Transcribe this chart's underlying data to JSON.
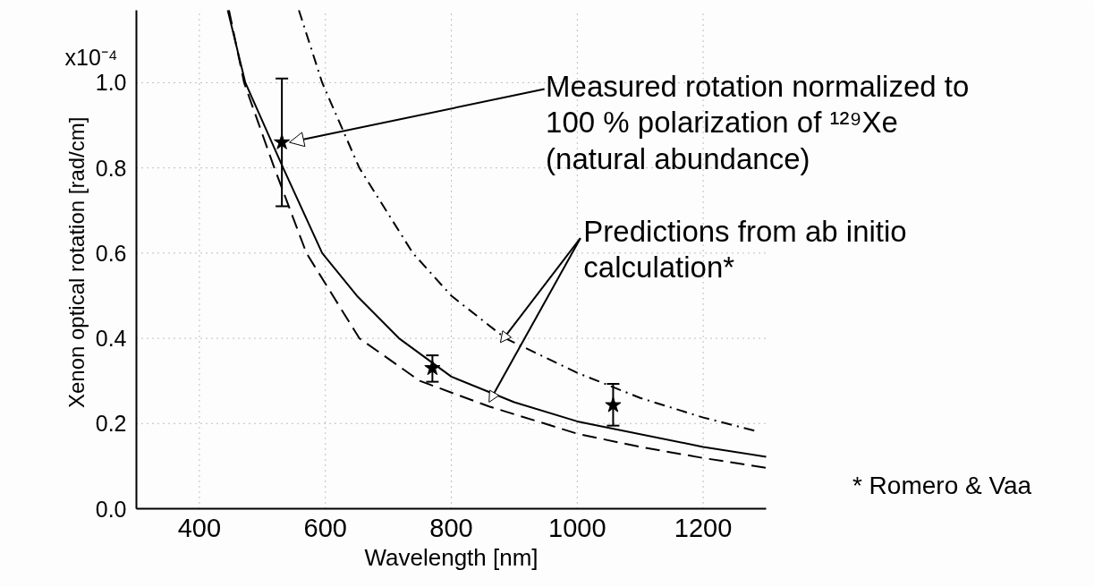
{
  "chart_data": {
    "type": "line",
    "xlabel": "Wavelength [nm]",
    "ylabel": "Xenon optical rotation  [rad/cm]",
    "xlim": [
      300,
      1300
    ],
    "ylim": [
      0,
      1.17
    ],
    "xticks": [
      400,
      600,
      800,
      1000,
      1200
    ],
    "yticks": [
      {
        "value": 0.0,
        "label": "0.0"
      },
      0.2,
      0.4,
      0.6,
      0.8,
      {
        "value": 1.0,
        "label": "1.0"
      }
    ],
    "grid": true,
    "series": [
      {
        "type": "scatter",
        "marker": "star",
        "color": "#000000",
        "x": [
          531,
          770,
          1057
        ],
        "values": [
          0.86,
          0.33,
          0.243
        ],
        "errors": [
          [
            0.71,
            1.01
          ],
          [
            0.298,
            0.36
          ],
          [
            0.195,
            0.293
          ]
        ]
      },
      {
        "line_style": "dashdot",
        "color": "#000000",
        "x": [
          558,
          595,
          654,
          739,
          800,
          886,
          1000,
          1100,
          1200,
          1285
        ],
        "values": [
          1.17,
          1.0,
          0.8,
          0.6,
          0.5,
          0.4,
          0.319,
          0.26,
          0.214,
          0.182
        ]
      },
      {
        "line_style": "dashed",
        "color": "#000000",
        "x": [
          447,
          471,
          519,
          570,
          654,
          750,
          860,
          948,
          1000,
          1100,
          1200,
          1300
        ],
        "values": [
          1.17,
          1.0,
          0.8,
          0.6,
          0.4,
          0.3,
          0.24,
          0.2,
          0.176,
          0.145,
          0.119,
          0.096
        ]
      },
      {
        "line_style": "solid",
        "color": "#000000",
        "x": [
          445,
          473,
          533,
          595,
          650,
          717,
          800,
          900,
          1000,
          1200,
          1300
        ],
        "values": [
          1.17,
          1.0,
          0.8,
          0.6,
          0.5,
          0.4,
          0.31,
          0.25,
          0.205,
          0.145,
          0.122
        ]
      }
    ],
    "annotations": [
      {
        "text": "Measured rotation normalized to\n100 % polarization of ¹²⁹Xe\n(natural abundance)",
        "x": 531,
        "y": 0.86
      },
      {
        "text": "Predictions from ab initio\ncalculation*",
        "x": 886,
        "y": 0.4
      },
      "* Romero & Vaa",
      "x10⁻⁴"
    ]
  }
}
